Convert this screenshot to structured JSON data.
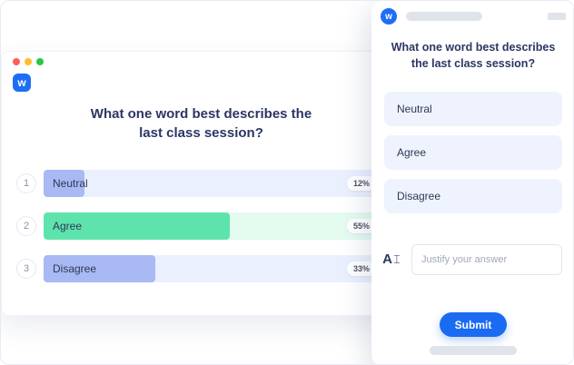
{
  "app": {
    "brand_letter": "w",
    "brand_color": "#1e6ef5"
  },
  "desktop_window": {
    "window_controls": [
      "close",
      "minimize",
      "zoom"
    ],
    "question": "What one word best describes the last class session?",
    "results": [
      {
        "rank": "1",
        "label": "Neutral",
        "percent_label": "12%",
        "value": 12
      },
      {
        "rank": "2",
        "label": "Agree",
        "percent_label": "55%",
        "value": 55
      },
      {
        "rank": "3",
        "label": "Disagree",
        "percent_label": "33%",
        "value": 33
      }
    ]
  },
  "mobile_panel": {
    "question": "What one word best describes the last class session?",
    "options": [
      {
        "label": "Neutral"
      },
      {
        "label": "Agree"
      },
      {
        "label": "Disagree"
      }
    ],
    "open_answer": {
      "icon_letter": "A",
      "cursor_glyph": "⌶",
      "placeholder": "Justify your answer"
    },
    "submit_label": "Submit"
  },
  "chart_data": {
    "type": "bar",
    "title": "What one word best describes the last class session?",
    "categories": [
      "Neutral",
      "Agree",
      "Disagree"
    ],
    "values": [
      12,
      55,
      33
    ],
    "value_unit": "%",
    "xlim": [
      0,
      100
    ]
  },
  "colors": {
    "brand_blue": "#1e6ef5",
    "navy_text": "#2c3664",
    "green_fill": "#5fe3ad",
    "green_track": "#e4fbf0",
    "lavender_fill": "#a8b9f3",
    "blue_track": "#eaf0fe",
    "option_bg": "#eff3fd",
    "placeholder_bar": "#dfe3ea"
  }
}
